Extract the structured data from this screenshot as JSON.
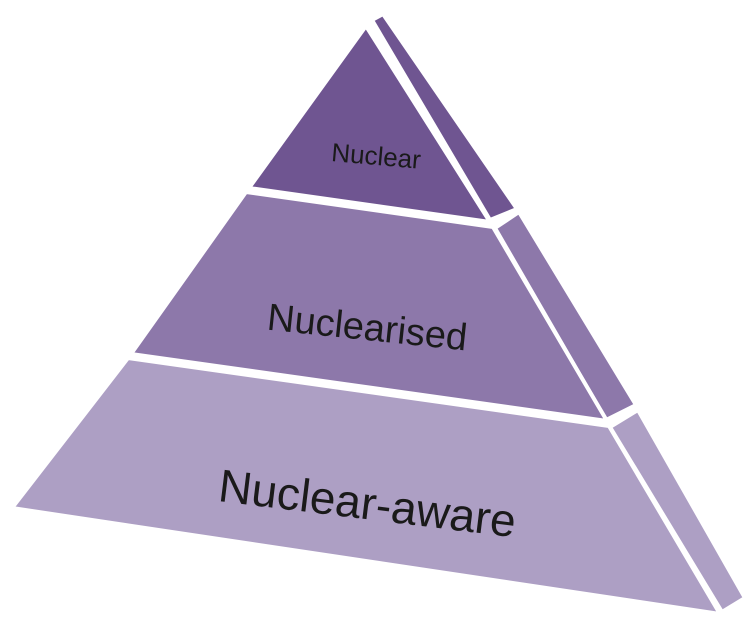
{
  "tiers": [
    {
      "label": "Nuclear"
    },
    {
      "label": "Nuclearised"
    },
    {
      "label": "Nuclear-aware"
    }
  ]
}
